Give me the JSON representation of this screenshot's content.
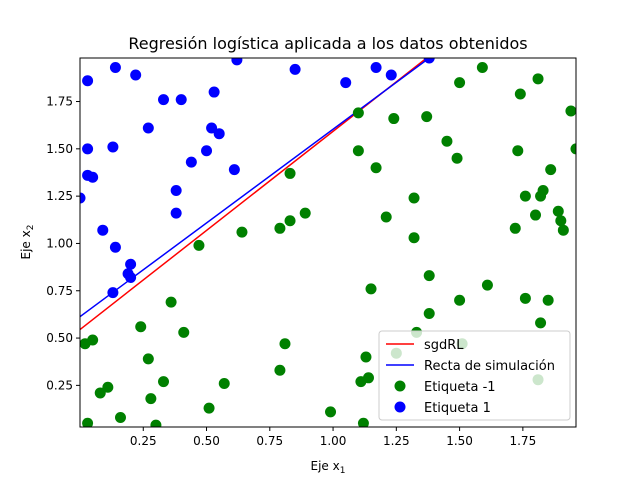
{
  "chart_data": {
    "type": "scatter",
    "title": "Regresión logística aplicada a los datos obtenidos",
    "xlabel_base": "Eje x",
    "xlabel_sub": "1",
    "ylabel_base": "Eje x",
    "ylabel_sub": "2",
    "xlim": [
      0.0,
      1.96
    ],
    "ylim": [
      0.03,
      1.98
    ],
    "xticks": [
      0.25,
      0.5,
      0.75,
      1.0,
      1.25,
      1.5,
      1.75
    ],
    "xtick_labels": [
      "0.25",
      "0.50",
      "0.75",
      "1.00",
      "1.25",
      "1.50",
      "1.75"
    ],
    "yticks": [
      0.25,
      0.5,
      0.75,
      1.0,
      1.25,
      1.5,
      1.75
    ],
    "ytick_labels": [
      "0.25",
      "0.50",
      "0.75",
      "1.00",
      "1.25",
      "1.50",
      "1.75"
    ],
    "grid": false,
    "legend_position": "lower-right",
    "lines": [
      {
        "name": "sgdRL",
        "color": "#ff0000",
        "points": [
          [
            0.0,
            0.545
          ],
          [
            1.37,
            1.98
          ]
        ]
      },
      {
        "name": "Recta de simulación",
        "color": "#0000ff",
        "points": [
          [
            0.0,
            0.613
          ],
          [
            1.38,
            1.98
          ]
        ]
      }
    ],
    "series": [
      {
        "name": "Etiqueta -1",
        "color": "#008000",
        "points": [
          [
            0.02,
            0.47
          ],
          [
            0.05,
            0.49
          ],
          [
            0.03,
            0.05
          ],
          [
            0.08,
            0.21
          ],
          [
            0.11,
            0.24
          ],
          [
            0.16,
            0.08
          ],
          [
            0.24,
            0.56
          ],
          [
            0.27,
            0.39
          ],
          [
            0.28,
            0.18
          ],
          [
            0.3,
            0.04
          ],
          [
            0.33,
            0.27
          ],
          [
            0.36,
            0.69
          ],
          [
            0.41,
            0.53
          ],
          [
            0.47,
            0.99
          ],
          [
            0.51,
            0.13
          ],
          [
            0.57,
            0.26
          ],
          [
            0.64,
            1.06
          ],
          [
            0.79,
            1.08
          ],
          [
            0.79,
            0.33
          ],
          [
            0.81,
            0.47
          ],
          [
            0.83,
            1.12
          ],
          [
            0.83,
            1.37
          ],
          [
            0.89,
            1.16
          ],
          [
            0.99,
            0.11
          ],
          [
            1.1,
            1.49
          ],
          [
            1.1,
            1.69
          ],
          [
            1.11,
            0.27
          ],
          [
            1.12,
            0.05
          ],
          [
            1.13,
            0.4
          ],
          [
            1.14,
            0.29
          ],
          [
            1.15,
            0.76
          ],
          [
            1.17,
            1.4
          ],
          [
            1.21,
            1.14
          ],
          [
            1.24,
            1.66
          ],
          [
            1.25,
            0.42
          ],
          [
            1.32,
            1.03
          ],
          [
            1.32,
            1.24
          ],
          [
            1.33,
            0.53
          ],
          [
            1.37,
            1.67
          ],
          [
            1.38,
            0.63
          ],
          [
            1.38,
            0.83
          ],
          [
            1.45,
            1.54
          ],
          [
            1.49,
            1.45
          ],
          [
            1.5,
            1.85
          ],
          [
            1.5,
            0.7
          ],
          [
            1.51,
            0.47
          ],
          [
            1.59,
            1.93
          ],
          [
            1.61,
            0.78
          ],
          [
            1.72,
            1.08
          ],
          [
            1.73,
            1.49
          ],
          [
            1.74,
            1.79
          ],
          [
            1.76,
            1.25
          ],
          [
            1.76,
            0.71
          ],
          [
            1.8,
            1.15
          ],
          [
            1.81,
            0.28
          ],
          [
            1.81,
            1.87
          ],
          [
            1.82,
            0.58
          ],
          [
            1.82,
            1.25
          ],
          [
            1.83,
            1.28
          ],
          [
            1.85,
            0.7
          ],
          [
            1.86,
            1.39
          ],
          [
            1.89,
            1.17
          ],
          [
            1.9,
            1.12
          ],
          [
            1.91,
            1.07
          ],
          [
            1.94,
            1.7
          ],
          [
            1.96,
            1.5
          ]
        ]
      },
      {
        "name": "Etiqueta 1",
        "color": "#0000ff",
        "points": [
          [
            0.0,
            1.24
          ],
          [
            0.03,
            1.86
          ],
          [
            0.03,
            1.5
          ],
          [
            0.03,
            1.36
          ],
          [
            0.05,
            1.35
          ],
          [
            0.09,
            1.07
          ],
          [
            0.13,
            1.51
          ],
          [
            0.13,
            0.74
          ],
          [
            0.14,
            0.98
          ],
          [
            0.14,
            1.93
          ],
          [
            0.19,
            0.84
          ],
          [
            0.2,
            0.89
          ],
          [
            0.2,
            0.82
          ],
          [
            0.22,
            1.89
          ],
          [
            0.27,
            1.61
          ],
          [
            0.33,
            1.76
          ],
          [
            0.38,
            1.28
          ],
          [
            0.38,
            1.16
          ],
          [
            0.4,
            1.76
          ],
          [
            0.44,
            1.43
          ],
          [
            0.5,
            1.49
          ],
          [
            0.52,
            1.61
          ],
          [
            0.53,
            1.8
          ],
          [
            0.55,
            1.58
          ],
          [
            0.61,
            1.39
          ],
          [
            0.62,
            1.97
          ],
          [
            0.85,
            1.92
          ],
          [
            1.05,
            1.85
          ],
          [
            1.17,
            1.93
          ],
          [
            1.23,
            1.89
          ],
          [
            1.38,
            1.98
          ]
        ]
      }
    ]
  }
}
